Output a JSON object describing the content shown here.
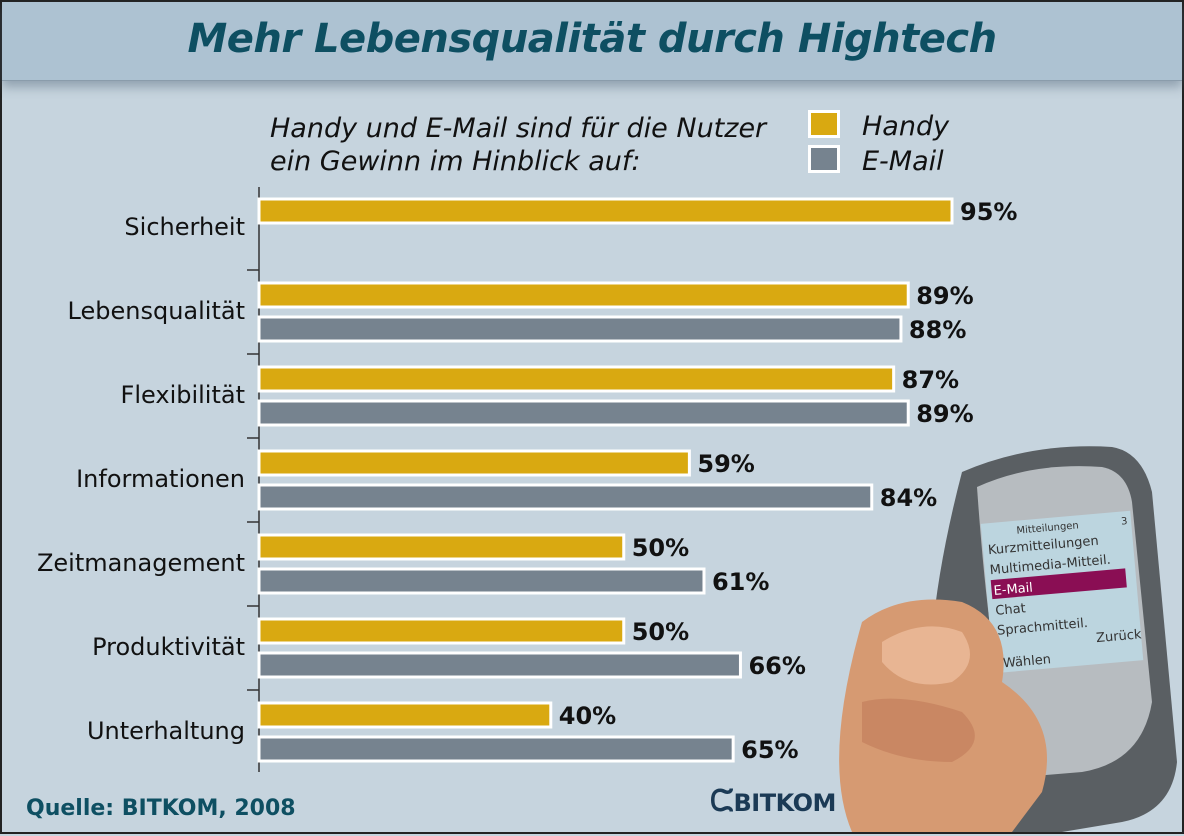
{
  "chart_data": {
    "type": "bar",
    "orientation": "horizontal",
    "title": "Mehr Lebensqualität durch Hightech",
    "subtitle": [
      "Handy und E-Mail sind für die Nutzer",
      "ein Gewinn im Hinblick auf:"
    ],
    "categories": [
      "Sicherheit",
      "Lebensqualität",
      "Flexibilität",
      "Informationen",
      "Zeitmanagement",
      "Produktivität",
      "Unterhaltung"
    ],
    "series": [
      {
        "name": "Handy",
        "color": "#d9a911",
        "values": [
          95,
          89,
          87,
          59,
          50,
          50,
          40
        ]
      },
      {
        "name": "E-Mail",
        "color": "#76838f",
        "values": [
          null,
          88,
          89,
          84,
          61,
          66,
          65
        ]
      }
    ],
    "value_suffix": "%",
    "xlim": [
      0,
      100
    ],
    "legend_position": "top-right",
    "grid": false
  },
  "source": "Quelle: BITKOM, 2008",
  "logo": "BITKOM",
  "phone_screen": {
    "header": "Mitteilungen",
    "page": "3",
    "items": [
      "Kurzmitteilungen",
      "Multimedia-Mitteil.",
      "E-Mail",
      "Chat",
      "Sprachmitteil."
    ],
    "selected": "E-Mail",
    "left_softkey": "Wählen",
    "right_softkey": "Zurück"
  }
}
